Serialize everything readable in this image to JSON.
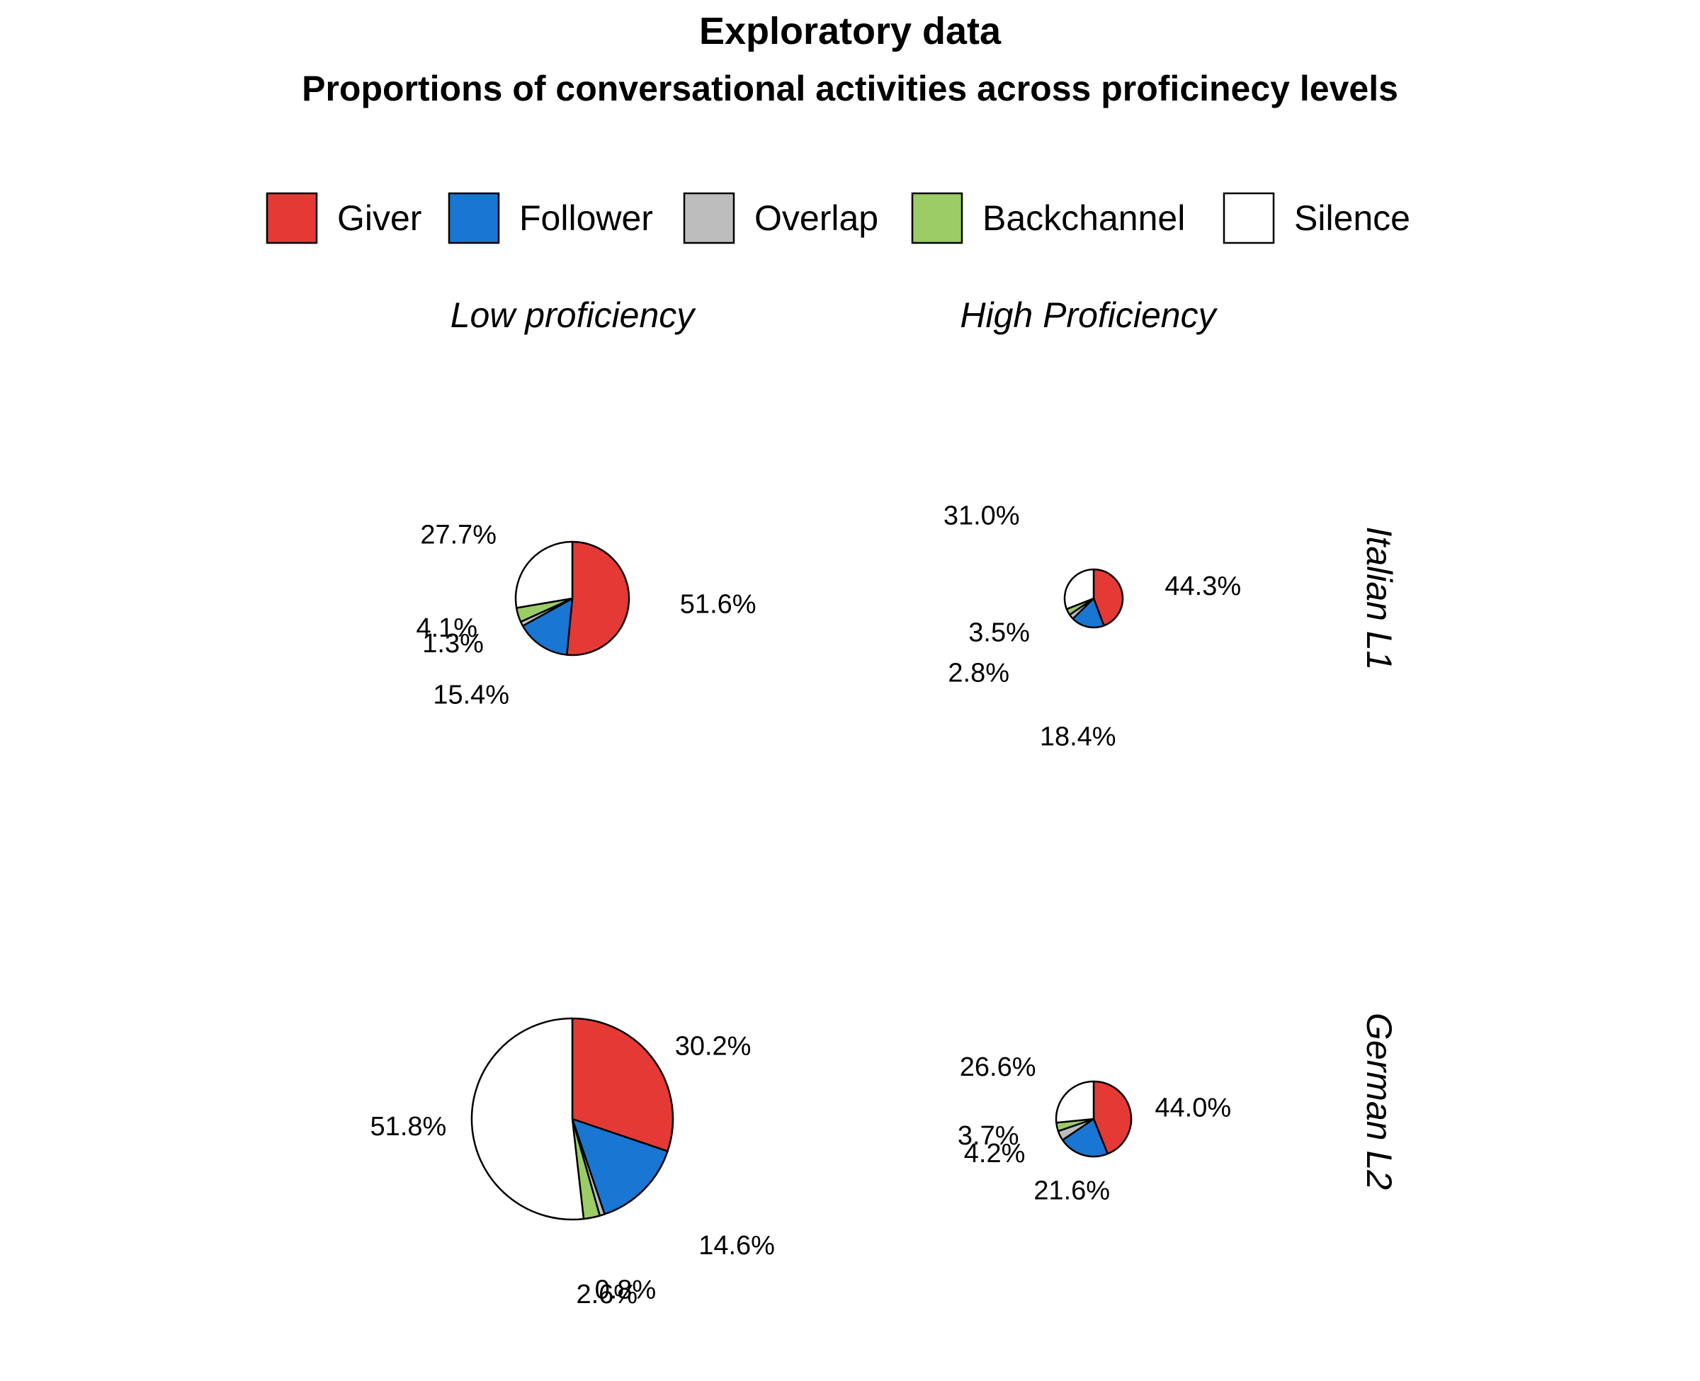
{
  "chart_data": {
    "type": "pie",
    "title": "Exploratory data",
    "subtitle": "Proportions of conversational activities across proficinecy levels",
    "legend": {
      "placement": "top",
      "entries": [
        {
          "name": "Giver",
          "color": "#e53935"
        },
        {
          "name": "Follower",
          "color": "#1976d2"
        },
        {
          "name": "Overlap",
          "color": "#bdbdbd"
        },
        {
          "name": "Backchannel",
          "color": "#9ccc65"
        },
        {
          "name": "Silence",
          "color": "#ffffff"
        }
      ]
    },
    "column_labels": [
      "Low proficiency",
      "High Proficiency"
    ],
    "row_labels": [
      "Italian L1",
      "German L2"
    ],
    "panels": [
      {
        "row": "Italian L1",
        "column": "Low proficiency",
        "labels": [
          "51.6%",
          "15.4%",
          "1.3%",
          "4.1%",
          "27.7%"
        ],
        "values": [
          51.6,
          15.4,
          1.3,
          4.1,
          27.7
        ]
      },
      {
        "row": "Italian L1",
        "column": "High Proficiency",
        "labels": [
          "44.3%",
          "18.4%",
          "2.8%",
          "3.5%",
          "31.0%"
        ],
        "values": [
          44.3,
          18.4,
          2.8,
          3.5,
          31.0
        ]
      },
      {
        "row": "German L2",
        "column": "Low proficiency",
        "labels": [
          "30.2%",
          "14.6%",
          "0.8%",
          "2.6%",
          "51.8%"
        ],
        "values": [
          30.2,
          14.6,
          0.8,
          2.6,
          51.8
        ]
      },
      {
        "row": "German L2",
        "column": "High Proficiency",
        "labels": [
          "44.0%",
          "21.6%",
          "4.2%",
          "3.7%",
          "26.6%"
        ],
        "values": [
          44.0,
          21.6,
          4.2,
          3.7,
          26.6
        ]
      }
    ]
  }
}
